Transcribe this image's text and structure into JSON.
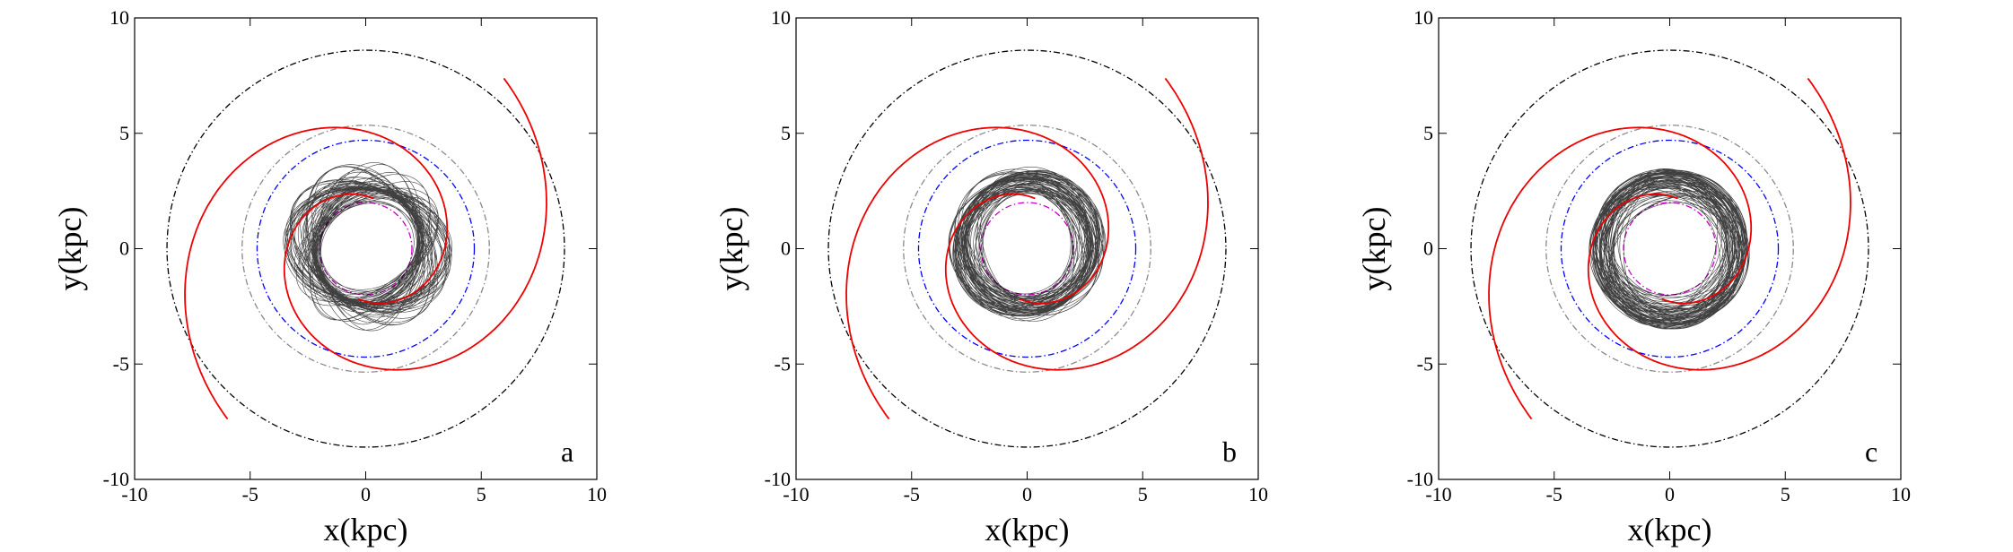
{
  "chart_data": [
    {
      "panel_label": "a",
      "type": "line",
      "xlabel": "x(kpc)",
      "ylabel": "y(kpc)",
      "xlim": [
        -10,
        10
      ],
      "ylim": [
        -10,
        10
      ],
      "xticks": [
        -10,
        -5,
        0,
        5,
        10
      ],
      "yticks": [
        -10,
        -5,
        0,
        5,
        10
      ],
      "xtick_labels": [
        "-10",
        "-5",
        "0",
        "5",
        "10"
      ],
      "ytick_labels": [
        "-10",
        "-5",
        "0",
        "5",
        "10"
      ],
      "circles": [
        {
          "name": "outer circle",
          "radius": 8.6,
          "color": "#000000",
          "style": "dashdot"
        },
        {
          "name": "grey circle",
          "radius": 5.35,
          "color": "#8a8a8a",
          "style": "dashdot"
        },
        {
          "name": "blue circle",
          "radius": 4.7,
          "color": "#0000ff",
          "style": "dashdot"
        },
        {
          "name": "magenta circle",
          "radius": 2.0,
          "color": "#cc00cc",
          "style": "dashdot"
        }
      ],
      "spiral_arms": {
        "color": "#ee0000",
        "r_start": 2.2,
        "r_end": 9.5,
        "turn_deg": 330
      },
      "orbit": {
        "semi_major": 2.5,
        "semi_minor": 3.7,
        "center": [
          0.1,
          0.1
        ],
        "tilt_deg": 12,
        "precession_deg": 75,
        "loops": 70,
        "color": "#000000"
      }
    },
    {
      "panel_label": "b",
      "type": "line",
      "xlabel": "x(kpc)",
      "ylabel": "y(kpc)",
      "xlim": [
        -10,
        10
      ],
      "ylim": [
        -10,
        10
      ],
      "xticks": [
        -10,
        -5,
        0,
        5,
        10
      ],
      "yticks": [
        -10,
        -5,
        0,
        5,
        10
      ],
      "xtick_labels": [
        "-10",
        "-5",
        "0",
        "5",
        "10"
      ],
      "ytick_labels": [
        "-10",
        "-5",
        "0",
        "5",
        "10"
      ],
      "circles": [
        {
          "name": "outer circle",
          "radius": 8.6,
          "color": "#000000",
          "style": "dashdot"
        },
        {
          "name": "grey circle",
          "radius": 5.35,
          "color": "#8a8a8a",
          "style": "dashdot"
        },
        {
          "name": "blue circle",
          "radius": 4.7,
          "color": "#0000ff",
          "style": "dashdot"
        },
        {
          "name": "magenta circle",
          "radius": 2.0,
          "color": "#cc00cc",
          "style": "dashdot"
        }
      ],
      "spiral_arms": {
        "color": "#ee0000",
        "r_start": 2.2,
        "r_end": 9.5,
        "turn_deg": 330
      },
      "orbit": {
        "semi_major": 3.0,
        "semi_minor": 3.4,
        "center": [
          0.0,
          0.2
        ],
        "tilt_deg": 20,
        "precession_deg": 120,
        "loops": 70,
        "color": "#000000"
      }
    },
    {
      "panel_label": "c",
      "type": "line",
      "xlabel": "x(kpc)",
      "ylabel": "y(kpc)",
      "xlim": [
        -10,
        10
      ],
      "ylim": [
        -10,
        10
      ],
      "xticks": [
        -10,
        -5,
        0,
        5,
        10
      ],
      "yticks": [
        -10,
        -5,
        0,
        5,
        10
      ],
      "xtick_labels": [
        "-10",
        "-5",
        "0",
        "5",
        "10"
      ],
      "ytick_labels": [
        "-10",
        "-5",
        "0",
        "5",
        "10"
      ],
      "circles": [
        {
          "name": "outer circle",
          "radius": 8.6,
          "color": "#000000",
          "style": "dashdot"
        },
        {
          "name": "grey circle",
          "radius": 5.35,
          "color": "#8a8a8a",
          "style": "dashdot"
        },
        {
          "name": "blue circle",
          "radius": 4.7,
          "color": "#0000ff",
          "style": "dashdot"
        },
        {
          "name": "magenta circle",
          "radius": 2.0,
          "color": "#cc00cc",
          "style": "dashdot"
        }
      ],
      "spiral_arms": {
        "color": "#ee0000",
        "r_start": 2.2,
        "r_end": 9.5,
        "turn_deg": 330
      },
      "orbit": {
        "semi_major": 3.3,
        "semi_minor": 3.5,
        "center": [
          0.0,
          0.0
        ],
        "tilt_deg": 0,
        "precession_deg": 360,
        "loops": 75,
        "color": "#000000"
      }
    }
  ]
}
